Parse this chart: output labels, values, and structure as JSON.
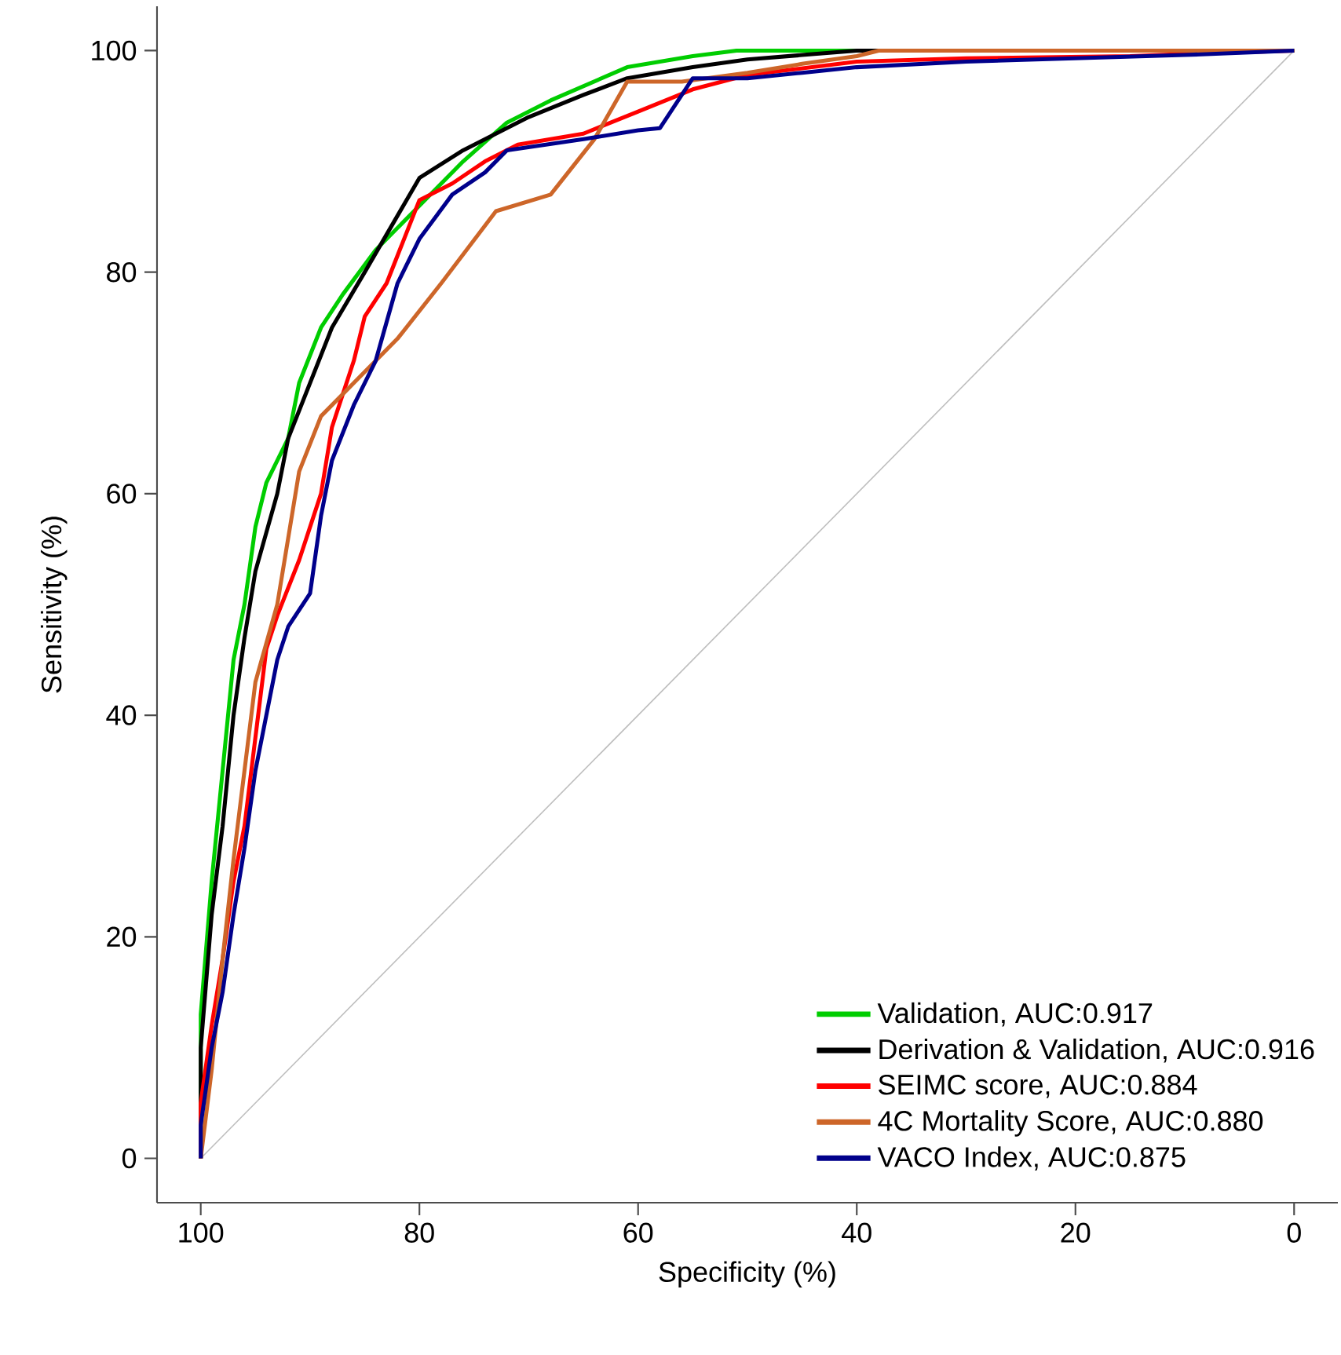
{
  "chart_data": {
    "type": "line",
    "xlabel": "Specificity (%)",
    "ylabel": "Sensitivity (%)",
    "xlim": [
      104,
      -4
    ],
    "ylim": [
      -4,
      104
    ],
    "xticks": [
      100,
      80,
      60,
      40,
      20,
      0
    ],
    "yticks": [
      0,
      20,
      40,
      60,
      80,
      100
    ],
    "legend": "bottom right",
    "line_style": "solid",
    "series": [
      {
        "color": "#bebebe",
        "x": [
          100,
          0
        ],
        "values": [
          0,
          100
        ]
      },
      {
        "name": "Validation, AUC:0.917",
        "color": "#00cd00",
        "x": [
          100,
          100,
          99,
          98,
          97,
          96,
          95,
          94,
          92,
          91,
          89,
          87,
          84,
          80,
          76,
          72,
          68,
          61,
          55,
          51,
          0
        ],
        "values": [
          0,
          13,
          25,
          35,
          45,
          50,
          57,
          61,
          65,
          70,
          75,
          78,
          82,
          86,
          90,
          93.5,
          95.5,
          98.5,
          99.5,
          100,
          100
        ]
      },
      {
        "name": "Derivation & Validation, AUC:0.916",
        "color": "#000000",
        "x": [
          100,
          100,
          99,
          98,
          97,
          96,
          95,
          93,
          92,
          90,
          88,
          85,
          80,
          76,
          70,
          65,
          61,
          55,
          50,
          45,
          40,
          0
        ],
        "values": [
          0,
          10,
          22,
          30,
          40,
          47,
          53,
          60,
          65,
          70,
          75,
          80,
          88.5,
          91,
          94,
          96,
          97.5,
          98.5,
          99.2,
          99.6,
          100,
          100
        ]
      },
      {
        "name": "SEIMC score, AUC:0.884",
        "color": "#ff0000",
        "x": [
          100,
          100,
          99,
          98,
          97,
          96,
          95,
          94,
          93,
          91,
          89,
          88,
          86,
          85,
          83,
          80,
          77,
          74,
          71,
          68,
          65,
          60,
          55,
          50,
          40,
          30,
          15,
          10,
          0
        ],
        "values": [
          0,
          5,
          12,
          18,
          25,
          30,
          38,
          46,
          49,
          54,
          60,
          66,
          72,
          76,
          79,
          86.5,
          88,
          90,
          91.5,
          92,
          92.5,
          94.5,
          96.5,
          97.8,
          99,
          99.3,
          99.5,
          99.7,
          100
        ]
      },
      {
        "name": "4C Mortality Score, AUC:0.880",
        "color": "#cd6629",
        "x": [
          100,
          99,
          98,
          97,
          96,
          95,
          93,
          92,
          91,
          89,
          86,
          82,
          78,
          73,
          68,
          64,
          61,
          56,
          50,
          45,
          40,
          38,
          0
        ],
        "values": [
          0,
          8,
          18,
          27,
          35,
          43,
          50,
          56,
          62,
          67,
          70,
          74,
          79,
          85.5,
          87,
          92,
          97.2,
          97.2,
          98,
          98.8,
          99.5,
          100,
          100
        ]
      },
      {
        "name": "VACO Index, AUC:0.875",
        "color": "#00008b",
        "x": [
          100,
          100,
          99,
          98,
          97,
          96,
          95,
          94,
          93,
          92,
          90,
          89,
          88,
          86,
          84,
          82,
          80,
          77,
          74,
          72,
          65,
          60,
          58,
          55,
          50,
          45,
          40,
          30,
          20,
          10,
          0
        ],
        "values": [
          0,
          3,
          10,
          15,
          22,
          28,
          35,
          40,
          45,
          48,
          51,
          58,
          63,
          68,
          72,
          79,
          83,
          87,
          89,
          91,
          92,
          92.8,
          93,
          97.5,
          97.5,
          98,
          98.5,
          99,
          99.3,
          99.6,
          100
        ]
      }
    ]
  }
}
